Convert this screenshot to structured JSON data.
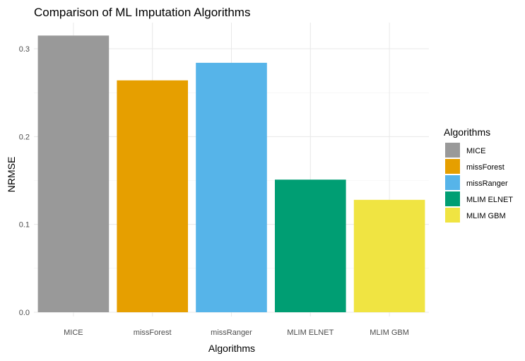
{
  "chart_data": {
    "type": "bar",
    "title": "Comparison of ML Imputation Algorithms",
    "xlabel": "Algorithms",
    "ylabel": "NRMSE",
    "categories": [
      "MICE",
      "missForest",
      "missRanger",
      "MLIM ELNET",
      "MLIM GBM"
    ],
    "values": [
      0.315,
      0.264,
      0.284,
      0.151,
      0.128
    ],
    "colors": [
      "#999999",
      "#E69F00",
      "#56B4E9",
      "#009E73",
      "#F0E442"
    ],
    "ylim": [
      0,
      0.33
    ],
    "yticks": [
      0.0,
      0.1,
      0.2,
      0.3
    ],
    "ytick_labels": [
      "0.0",
      "0.1",
      "0.2",
      "0.3"
    ],
    "grid": true,
    "legend": {
      "title": "Algorithms",
      "position": "right",
      "entries": [
        "MICE",
        "missForest",
        "missRanger",
        "MLIM ELNET",
        "MLIM GBM"
      ]
    }
  }
}
